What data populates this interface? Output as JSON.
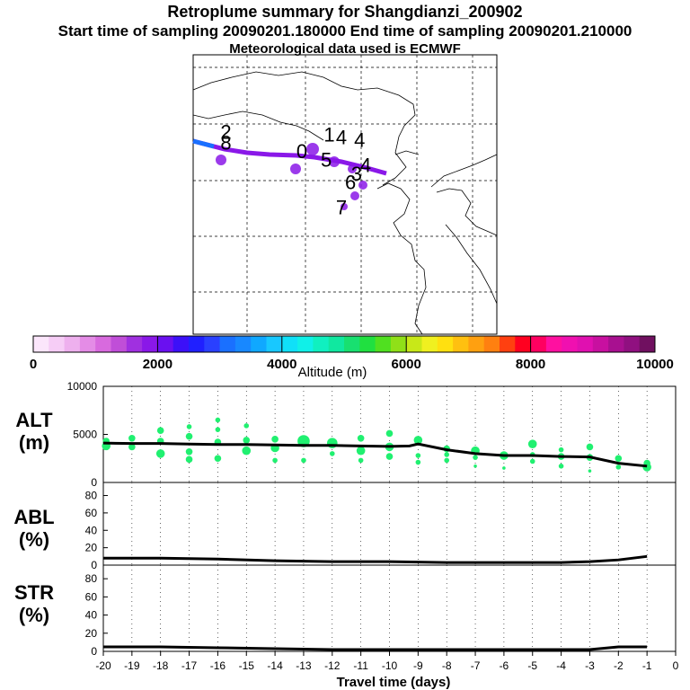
{
  "header": {
    "title": "Retroplume summary for Shangdianzi_200902",
    "sampling": "Start time of sampling 20090201.180000     End time of sampling 20090201.210000",
    "met": "Meteorological data used is ECMWF"
  },
  "map": {
    "day_labels": [
      {
        "label": "2",
        "lon": 0.09,
        "lat": 0.3
      },
      {
        "label": "8",
        "lon": 0.09,
        "lat": 0.34
      },
      {
        "label": "0",
        "lon": 0.34,
        "lat": 0.37
      },
      {
        "label": "1",
        "lon": 0.43,
        "lat": 0.31
      },
      {
        "label": "4",
        "lon": 0.47,
        "lat": 0.32
      },
      {
        "label": "4",
        "lon": 0.53,
        "lat": 0.33
      },
      {
        "label": "5",
        "lon": 0.42,
        "lat": 0.4
      },
      {
        "label": "4",
        "lon": 0.55,
        "lat": 0.42
      },
      {
        "label": "3",
        "lon": 0.52,
        "lat": 0.45
      },
      {
        "label": "6",
        "lon": 0.5,
        "lat": 0.48
      },
      {
        "label": "7",
        "lon": 0.47,
        "lat": 0.57
      }
    ]
  },
  "colorbar": {
    "label": "Altitude (m)",
    "ticks": [
      "0",
      "2000",
      "4000",
      "6000",
      "8000",
      "10000"
    ],
    "min": 0,
    "max": 10000,
    "colors": [
      "#fbe6fb",
      "#f6cdf6",
      "#eeb0ee",
      "#e48ce6",
      "#d86ade",
      "#c04ed8",
      "#a030e0",
      "#8a18e8",
      "#6a10f0",
      "#3c10f8",
      "#2020ff",
      "#2a40ff",
      "#1a70ff",
      "#1888ff",
      "#10a8ff",
      "#18c8ff",
      "#10e0f8",
      "#10f0e8",
      "#10f0c0",
      "#10e8a0",
      "#18e070",
      "#20e040",
      "#50e020",
      "#90e018",
      "#c8e818",
      "#f0f020",
      "#ffe010",
      "#ffc010",
      "#ffa010",
      "#ff8010",
      "#ff4010",
      "#ff0020",
      "#ff0060",
      "#ff10a0",
      "#f010b0",
      "#e010b0",
      "#c810a0",
      "#a81090",
      "#901080",
      "#701060"
    ]
  },
  "chart_data": [
    {
      "type": "line",
      "name": "ALT",
      "ylabel": "ALT\n(m)",
      "xlabel": "Travel time (days)",
      "x_ticks": [
        "-20",
        "-19",
        "-18",
        "-17",
        "-16",
        "-15",
        "-14",
        "-13",
        "-12",
        "-11",
        "-10",
        "-9",
        "-8",
        "-7",
        "-6",
        "-5",
        "-4",
        "-3",
        "-2",
        "-1",
        "0"
      ],
      "y_ticks": [
        "0",
        "5000",
        "10000"
      ],
      "xlim": [
        -20,
        0
      ],
      "ylim": [
        0,
        10000
      ],
      "x": [
        -20,
        -19,
        -18,
        -17,
        -16,
        -15,
        -14,
        -13,
        -12,
        -11,
        -10,
        -9.3,
        -9,
        -8,
        -7,
        -6,
        -5,
        -4,
        -3,
        -2,
        -1
      ],
      "series": [
        {
          "name": "mean altitude",
          "values": [
            4100,
            4050,
            4050,
            4000,
            3950,
            3950,
            3900,
            3850,
            3850,
            3800,
            3750,
            3800,
            4000,
            3400,
            3000,
            2800,
            2800,
            2700,
            2650,
            2000,
            1700
          ]
        }
      ],
      "clusters": [
        {
          "x": -19.9,
          "y": 4300,
          "size": 3
        },
        {
          "x": -19.9,
          "y": 3800,
          "size": 4
        },
        {
          "x": -19.0,
          "y": 4600,
          "size": 3
        },
        {
          "x": -19.0,
          "y": 3700,
          "size": 3
        },
        {
          "x": -18.0,
          "y": 5400,
          "size": 3
        },
        {
          "x": -18.0,
          "y": 4300,
          "size": 3
        },
        {
          "x": -18.0,
          "y": 3000,
          "size": 4
        },
        {
          "x": -17.0,
          "y": 5800,
          "size": 2
        },
        {
          "x": -17.0,
          "y": 4800,
          "size": 3
        },
        {
          "x": -17.0,
          "y": 3200,
          "size": 3
        },
        {
          "x": -17.0,
          "y": 2400,
          "size": 3
        },
        {
          "x": -16.0,
          "y": 6500,
          "size": 2
        },
        {
          "x": -16.0,
          "y": 5500,
          "size": 2
        },
        {
          "x": -16.0,
          "y": 4200,
          "size": 3
        },
        {
          "x": -16.0,
          "y": 2500,
          "size": 3
        },
        {
          "x": -15.0,
          "y": 5900,
          "size": 2
        },
        {
          "x": -15.0,
          "y": 4400,
          "size": 3
        },
        {
          "x": -15.0,
          "y": 3300,
          "size": 4
        },
        {
          "x": -14.0,
          "y": 4500,
          "size": 3
        },
        {
          "x": -14.0,
          "y": 3600,
          "size": 4
        },
        {
          "x": -14.0,
          "y": 2300,
          "size": 2
        },
        {
          "x": -13.0,
          "y": 4300,
          "size": 6
        },
        {
          "x": -13.0,
          "y": 2300,
          "size": 2
        },
        {
          "x": -12.0,
          "y": 4100,
          "size": 5
        },
        {
          "x": -12.0,
          "y": 3000,
          "size": 2
        },
        {
          "x": -11.0,
          "y": 4600,
          "size": 3
        },
        {
          "x": -11.0,
          "y": 3300,
          "size": 4
        },
        {
          "x": -11.0,
          "y": 2300,
          "size": 2
        },
        {
          "x": -10.0,
          "y": 5100,
          "size": 3
        },
        {
          "x": -10.0,
          "y": 3700,
          "size": 4
        },
        {
          "x": -10.0,
          "y": 2700,
          "size": 3
        },
        {
          "x": -9.0,
          "y": 4400,
          "size": 4
        },
        {
          "x": -9.0,
          "y": 2800,
          "size": 2
        },
        {
          "x": -9.0,
          "y": 2100,
          "size": 2
        },
        {
          "x": -8.0,
          "y": 3500,
          "size": 3
        },
        {
          "x": -8.0,
          "y": 2900,
          "size": 2
        },
        {
          "x": -8.0,
          "y": 2300,
          "size": 2
        },
        {
          "x": -7.0,
          "y": 3300,
          "size": 4
        },
        {
          "x": -7.0,
          "y": 2600,
          "size": 2
        },
        {
          "x": -7.0,
          "y": 1700,
          "size": 1
        },
        {
          "x": -6.0,
          "y": 2800,
          "size": 4
        },
        {
          "x": -6.0,
          "y": 1500,
          "size": 1
        },
        {
          "x": -5.0,
          "y": 4000,
          "size": 4
        },
        {
          "x": -5.0,
          "y": 2900,
          "size": 2
        },
        {
          "x": -5.0,
          "y": 2200,
          "size": 2
        },
        {
          "x": -4.0,
          "y": 3400,
          "size": 2
        },
        {
          "x": -4.0,
          "y": 2700,
          "size": 3
        },
        {
          "x": -4.0,
          "y": 1700,
          "size": 2
        },
        {
          "x": -3.0,
          "y": 3700,
          "size": 3
        },
        {
          "x": -3.0,
          "y": 2600,
          "size": 3
        },
        {
          "x": -3.0,
          "y": 1200,
          "size": 1
        },
        {
          "x": -2.0,
          "y": 2500,
          "size": 3
        },
        {
          "x": -2.0,
          "y": 1600,
          "size": 2
        },
        {
          "x": -1.0,
          "y": 2000,
          "size": 3
        },
        {
          "x": -1.0,
          "y": 1600,
          "size": 4
        }
      ]
    },
    {
      "type": "line",
      "name": "ABL",
      "ylabel": "ABL\n(%)",
      "y_ticks": [
        "0",
        "20",
        "40",
        "60",
        "80"
      ],
      "xlim": [
        -20,
        0
      ],
      "ylim": [
        0,
        95
      ],
      "x": [
        -20,
        -18,
        -16,
        -14,
        -12,
        -10,
        -8,
        -6,
        -4,
        -3,
        -2,
        -1
      ],
      "series": [
        {
          "name": "ABL fraction",
          "values": [
            8,
            8,
            7,
            5,
            4,
            4,
            3,
            3,
            3,
            4,
            6,
            10
          ]
        }
      ]
    },
    {
      "type": "line",
      "name": "STR",
      "ylabel": "STR\n(%)",
      "y_ticks": [
        "0",
        "20",
        "40",
        "60",
        "80"
      ],
      "xlim": [
        -20,
        0
      ],
      "ylim": [
        0,
        95
      ],
      "x": [
        -20,
        -18,
        -16,
        -14,
        -12,
        -10,
        -8,
        -6,
        -4,
        -3,
        -2,
        -1
      ],
      "series": [
        {
          "name": "STR fraction",
          "values": [
            5,
            5,
            4,
            3,
            2,
            2,
            2,
            2,
            2,
            2,
            5,
            5
          ]
        }
      ]
    }
  ],
  "colors": {
    "cluster": "#20f070",
    "mean_line": "#000000",
    "track_purple": "#8a18e8",
    "track_blue": "#1a70ff"
  }
}
